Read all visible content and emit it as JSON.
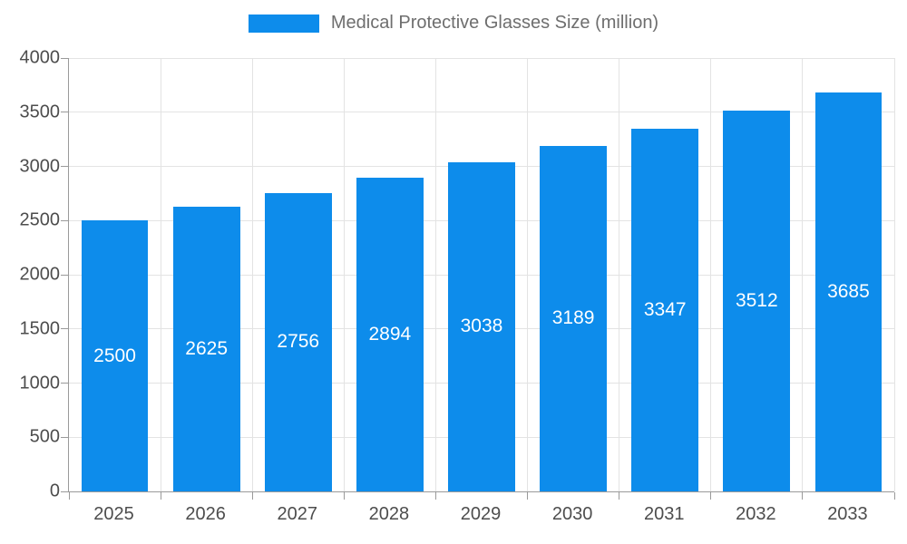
{
  "chart_data": {
    "type": "bar",
    "title": "Medical Protective Glasses Size (million)",
    "categories": [
      "2025",
      "2026",
      "2027",
      "2028",
      "2029",
      "2030",
      "2031",
      "2032",
      "2033"
    ],
    "values": [
      2500,
      2625,
      2756,
      2894,
      3038,
      3189,
      3347,
      3512,
      3685
    ],
    "xlabel": "",
    "ylabel": "",
    "ylim": [
      0,
      4000
    ],
    "yticks": [
      0,
      500,
      1000,
      1500,
      2000,
      2500,
      3000,
      3500,
      4000
    ],
    "grid": true,
    "legend_position": "top-center",
    "bar_color": "#0d8ceb",
    "value_label_color": "#ffffff",
    "axis_text_color": "#4d4d4d",
    "grid_color": "#e3e3e3"
  }
}
